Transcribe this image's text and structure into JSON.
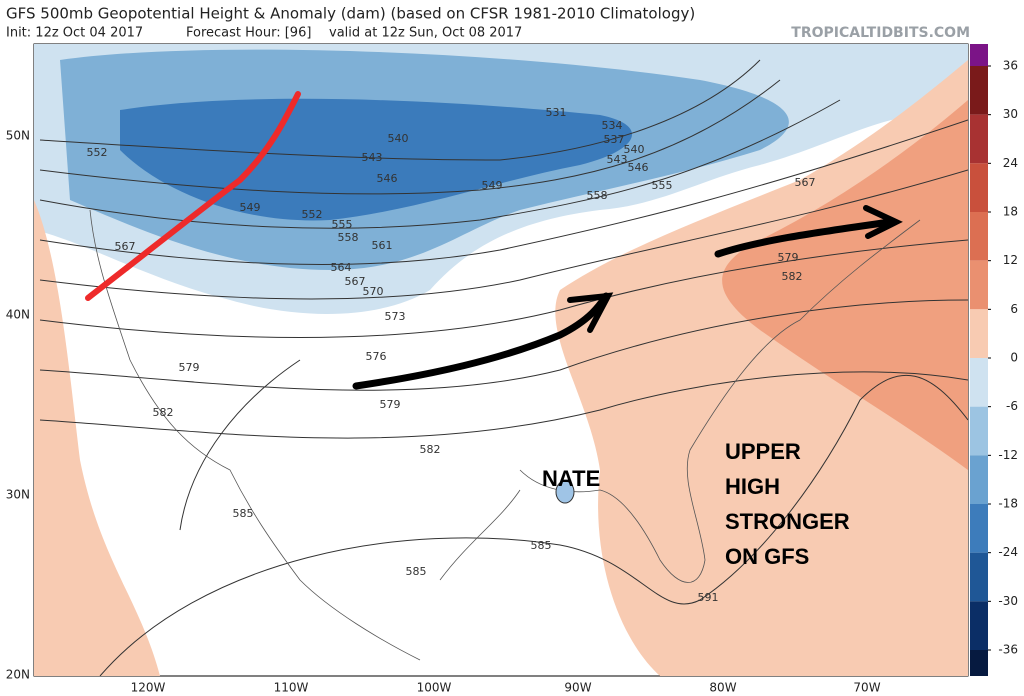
{
  "header": {
    "title": "GFS 500mb Geopotential Height & Anomaly (dam) (based on CFSR 1981-2010 Climatology)",
    "init": "Init: 12z Oct 04 2017",
    "forecast_hour": "Forecast Hour: [96]",
    "valid": "valid at 12z Sun, Oct 08 2017",
    "brand": "TROPICALTIDBITS.COM"
  },
  "map": {
    "lat_labels": [
      "50N",
      "40N",
      "30N",
      "20N"
    ],
    "lon_labels": [
      "120W",
      "110W",
      "100W",
      "90W",
      "80W",
      "70W"
    ],
    "contour_labels": [
      "552",
      "549",
      "552",
      "555",
      "558",
      "561",
      "564",
      "567",
      "570",
      "573",
      "576",
      "579",
      "582",
      "579",
      "582",
      "567",
      "540",
      "543",
      "546",
      "549",
      "531",
      "534",
      "537",
      "540",
      "543",
      "546",
      "555",
      "558",
      "567",
      "579",
      "582",
      "585",
      "585",
      "585",
      "591"
    ]
  },
  "colorbar": {
    "ticks": [
      36,
      30,
      24,
      18,
      12,
      6,
      0,
      -6,
      -12,
      -18,
      -24,
      -30,
      -36
    ]
  },
  "annotations": {
    "storm": "NATE",
    "note": [
      "UPPER",
      "HIGH",
      "STRONGER",
      "ON GFS"
    ]
  }
}
